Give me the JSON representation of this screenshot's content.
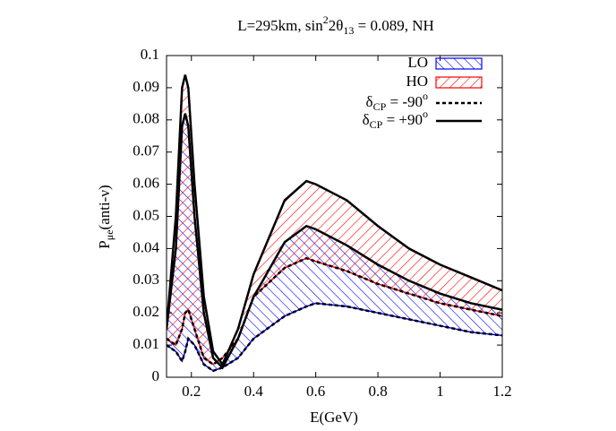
{
  "chart_data": {
    "type": "band",
    "title": {
      "a": "L=295km, sin",
      "sup": "2",
      "b": "2θ",
      "sub": "13",
      "c": " = 0.089, NH"
    },
    "x_label": "E(GeV)",
    "y_label": {
      "a": "P",
      "sub": "μe",
      "b": "(anti-ν)"
    },
    "x": [
      0.12,
      0.15,
      0.17,
      0.18,
      0.19,
      0.21,
      0.24,
      0.27,
      0.3,
      0.35,
      0.4,
      0.5,
      0.57,
      0.6,
      0.7,
      0.8,
      0.9,
      1.0,
      1.1,
      1.2
    ],
    "series": [
      {
        "name": "LO",
        "color": "#0000ff",
        "hatch": "backslash",
        "curves": [
          {
            "values": [
              0.01,
              0.008,
              0.005,
              0.008,
              0.012,
              0.01,
              0.004,
              0.002,
              0.003,
              0.006,
              0.012,
              0.019,
              0.022,
              0.023,
              0.022,
              0.02,
              0.018,
              0.016,
              0.014,
              0.013
            ]
          },
          {
            "values": [
              0.015,
              0.04,
              0.078,
              0.082,
              0.078,
              0.05,
              0.02,
              0.006,
              0.003,
              0.012,
              0.025,
              0.042,
              0.047,
              0.046,
              0.041,
              0.035,
              0.03,
              0.026,
              0.023,
              0.021
            ]
          }
        ]
      },
      {
        "name": "HO",
        "color": "#ff0000",
        "hatch": "slash",
        "curves": [
          {
            "values": [
              0.012,
              0.01,
              0.015,
              0.02,
              0.021,
              0.015,
              0.006,
              0.004,
              0.006,
              0.012,
              0.025,
              0.034,
              0.037,
              0.036,
              0.033,
              0.029,
              0.026,
              0.023,
              0.021,
              0.019
            ]
          },
          {
            "values": [
              0.015,
              0.05,
              0.09,
              0.094,
              0.09,
              0.06,
              0.025,
              0.008,
              0.004,
              0.015,
              0.032,
              0.055,
              0.061,
              0.06,
              0.055,
              0.047,
              0.04,
              0.035,
              0.031,
              0.027
            ]
          }
        ]
      }
    ],
    "line_styles": [
      {
        "symbol": "δ",
        "sub": "CP",
        "text": " = -90",
        "sup": "o",
        "color": "#000000",
        "dash": "4,3"
      },
      {
        "symbol": "δ",
        "sub": "CP",
        "text": " = +90",
        "sup": "o",
        "color": "#000000",
        "dash": "none"
      }
    ],
    "xlim": [
      0.12,
      1.2
    ],
    "xticks": [
      0.2,
      0.4,
      0.6,
      0.8,
      1,
      1.2
    ],
    "ylim": [
      0,
      0.1
    ],
    "yticks": [
      0,
      0.01,
      0.02,
      0.03,
      0.04,
      0.05,
      0.06,
      0.07,
      0.08,
      0.09,
      0.1
    ],
    "legend": "upper right"
  }
}
